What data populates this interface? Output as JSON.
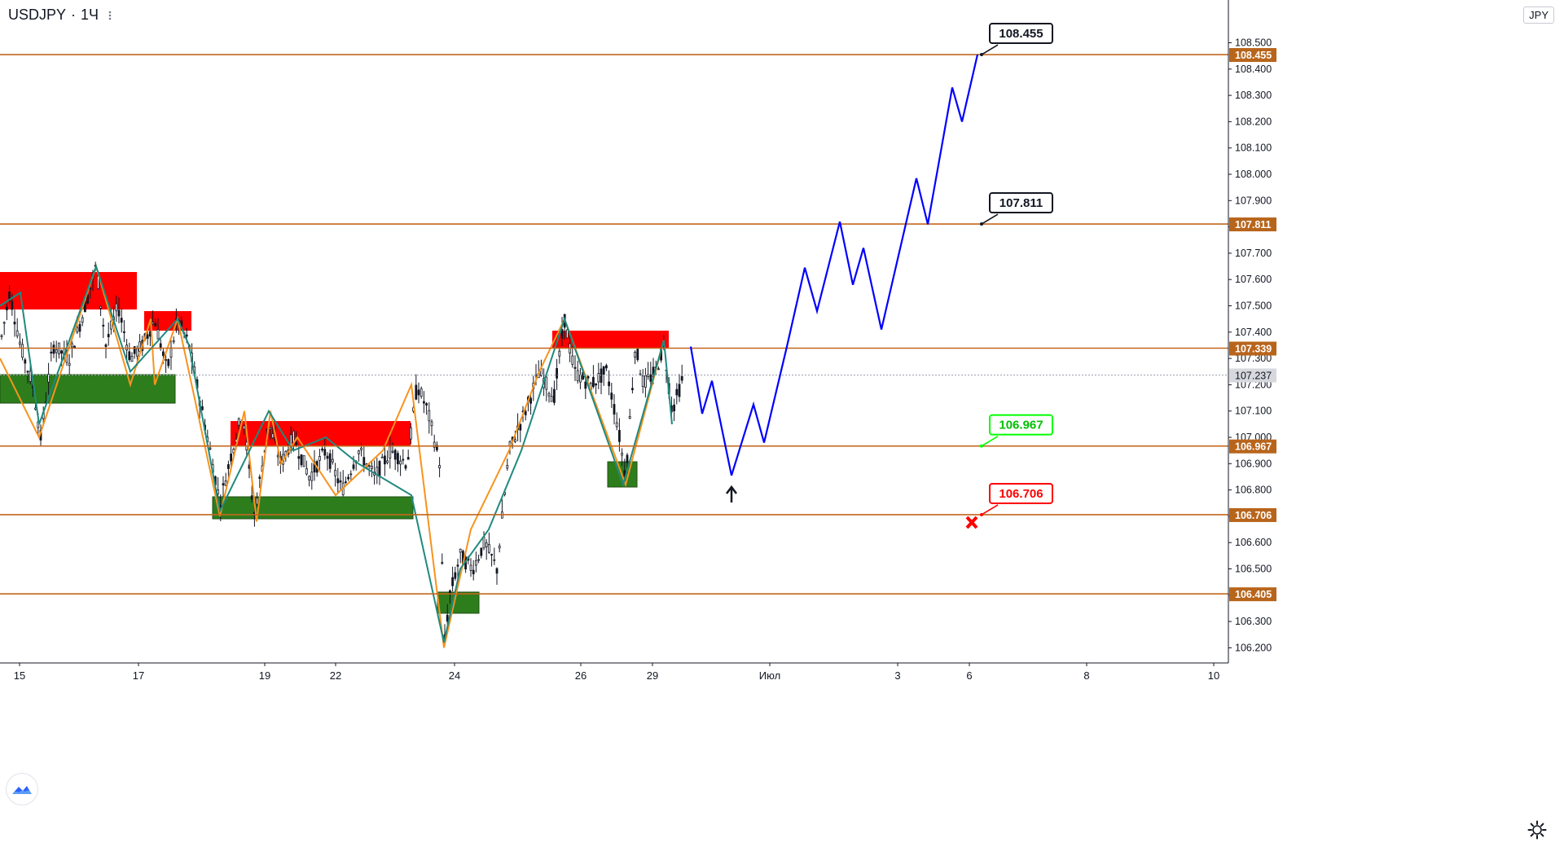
{
  "header": {
    "symbol": "USDJPY",
    "separator": "·",
    "interval": "1Ч",
    "more_icon": "dots-icon",
    "currency": "JPY"
  },
  "colors": {
    "level_line": "#c4671c",
    "level_tag_bg": "#b8651c",
    "supply_zone": "#ff0000",
    "demand_zone": "#2e7d1d",
    "projection": "#0000ff",
    "zigzag_orange": "#f7931e",
    "zigzag_teal": "#1f8a7e",
    "candle": "#131722",
    "take_profit": "#00ff00",
    "stop_loss": "#ff0000",
    "current_price_bg": "#d6d8de"
  },
  "chart_data": {
    "type": "line",
    "symbol": "USDJPY",
    "interval": "1Ч",
    "ylim": [
      106.14,
      108.56
    ],
    "y_ticks": [
      "108.500",
      "108.400",
      "108.300",
      "108.200",
      "108.100",
      "108.000",
      "107.900",
      "107.800",
      "107.700",
      "107.600",
      "107.500",
      "107.400",
      "107.300",
      "107.200",
      "107.100",
      "107.000",
      "106.900",
      "106.800",
      "106.700",
      "106.600",
      "106.500",
      "106.400",
      "106.300",
      "106.200"
    ],
    "x_ticks": [
      "15",
      "17",
      "19",
      "22",
      "24",
      "26",
      "29",
      "Июл",
      "3",
      "6",
      "8",
      "10"
    ],
    "price_levels": [
      "108.455",
      "107.811",
      "107.339",
      "106.967",
      "106.706",
      "106.405"
    ],
    "current_price": "107.237",
    "annotations": [
      {
        "label": "108.455",
        "style": "target"
      },
      {
        "label": "107.811",
        "style": "target"
      },
      {
        "label": "106.967",
        "style": "take-profit"
      },
      {
        "label": "106.706",
        "style": "stop-loss"
      }
    ],
    "supply_zones": [
      {
        "x": [
          "15",
          "16.9"
        ],
        "y": [
          107.48,
          107.62
        ]
      },
      {
        "x": [
          "17.1",
          "17.9"
        ],
        "y": [
          107.41,
          107.48
        ]
      },
      {
        "x": [
          "18.4",
          "22.4"
        ],
        "y": [
          106.97,
          107.06
        ]
      },
      {
        "x": [
          "25.3",
          "27.7"
        ],
        "y": [
          107.34,
          107.4
        ]
      }
    ],
    "demand_zones": [
      {
        "x": [
          "15",
          "17.7"
        ],
        "y": [
          107.14,
          107.24
        ]
      },
      {
        "x": [
          "18.2",
          "22.4"
        ],
        "y": [
          106.68,
          106.76
        ]
      },
      {
        "x": [
          "23.6",
          "24.2"
        ],
        "y": [
          106.39,
          106.47
        ]
      },
      {
        "x": [
          "27.4",
          "27.9"
        ],
        "y": [
          106.82,
          106.91
        ]
      }
    ],
    "projection_series": {
      "name": "",
      "y": [
        107.345,
        107.09,
        107.215,
        106.855,
        107.125,
        106.98,
        107.345,
        107.645,
        107.48,
        107.82,
        107.58,
        107.72,
        107.41,
        107.985,
        107.81,
        108.33,
        108.2,
        108.455
      ]
    }
  }
}
